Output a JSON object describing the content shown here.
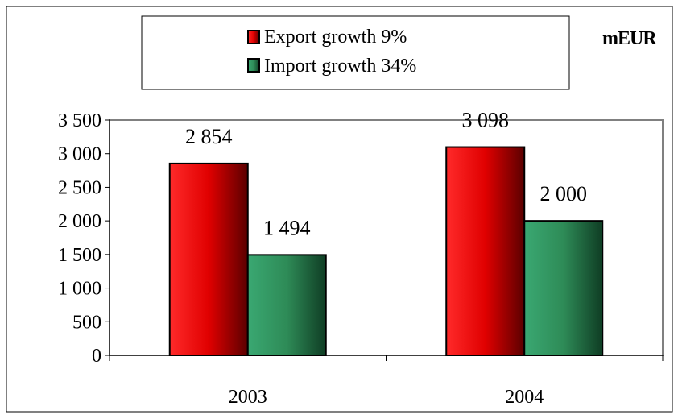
{
  "chart_data": {
    "type": "bar",
    "unit_label": "mEUR",
    "categories": [
      "2003",
      "2004"
    ],
    "series": [
      {
        "name": "Export growth 9%",
        "values": [
          2854,
          3098
        ],
        "labels": [
          "2 854",
          "3 098"
        ],
        "color": "#ff0000"
      },
      {
        "name": "Import growth 34%",
        "values": [
          1494,
          2000
        ],
        "labels": [
          "1 494",
          "2 000"
        ],
        "color": "#2e8b57"
      }
    ],
    "ylim": [
      0,
      3500
    ],
    "yticks": [
      0,
      500,
      1000,
      1500,
      2000,
      2500,
      3000,
      3500
    ],
    "ytick_labels": [
      "0",
      "500",
      "1 000",
      "1 500",
      "2 000",
      "2 500",
      "3 000",
      "3 500"
    ],
    "grid": false,
    "legend_position": "top"
  }
}
